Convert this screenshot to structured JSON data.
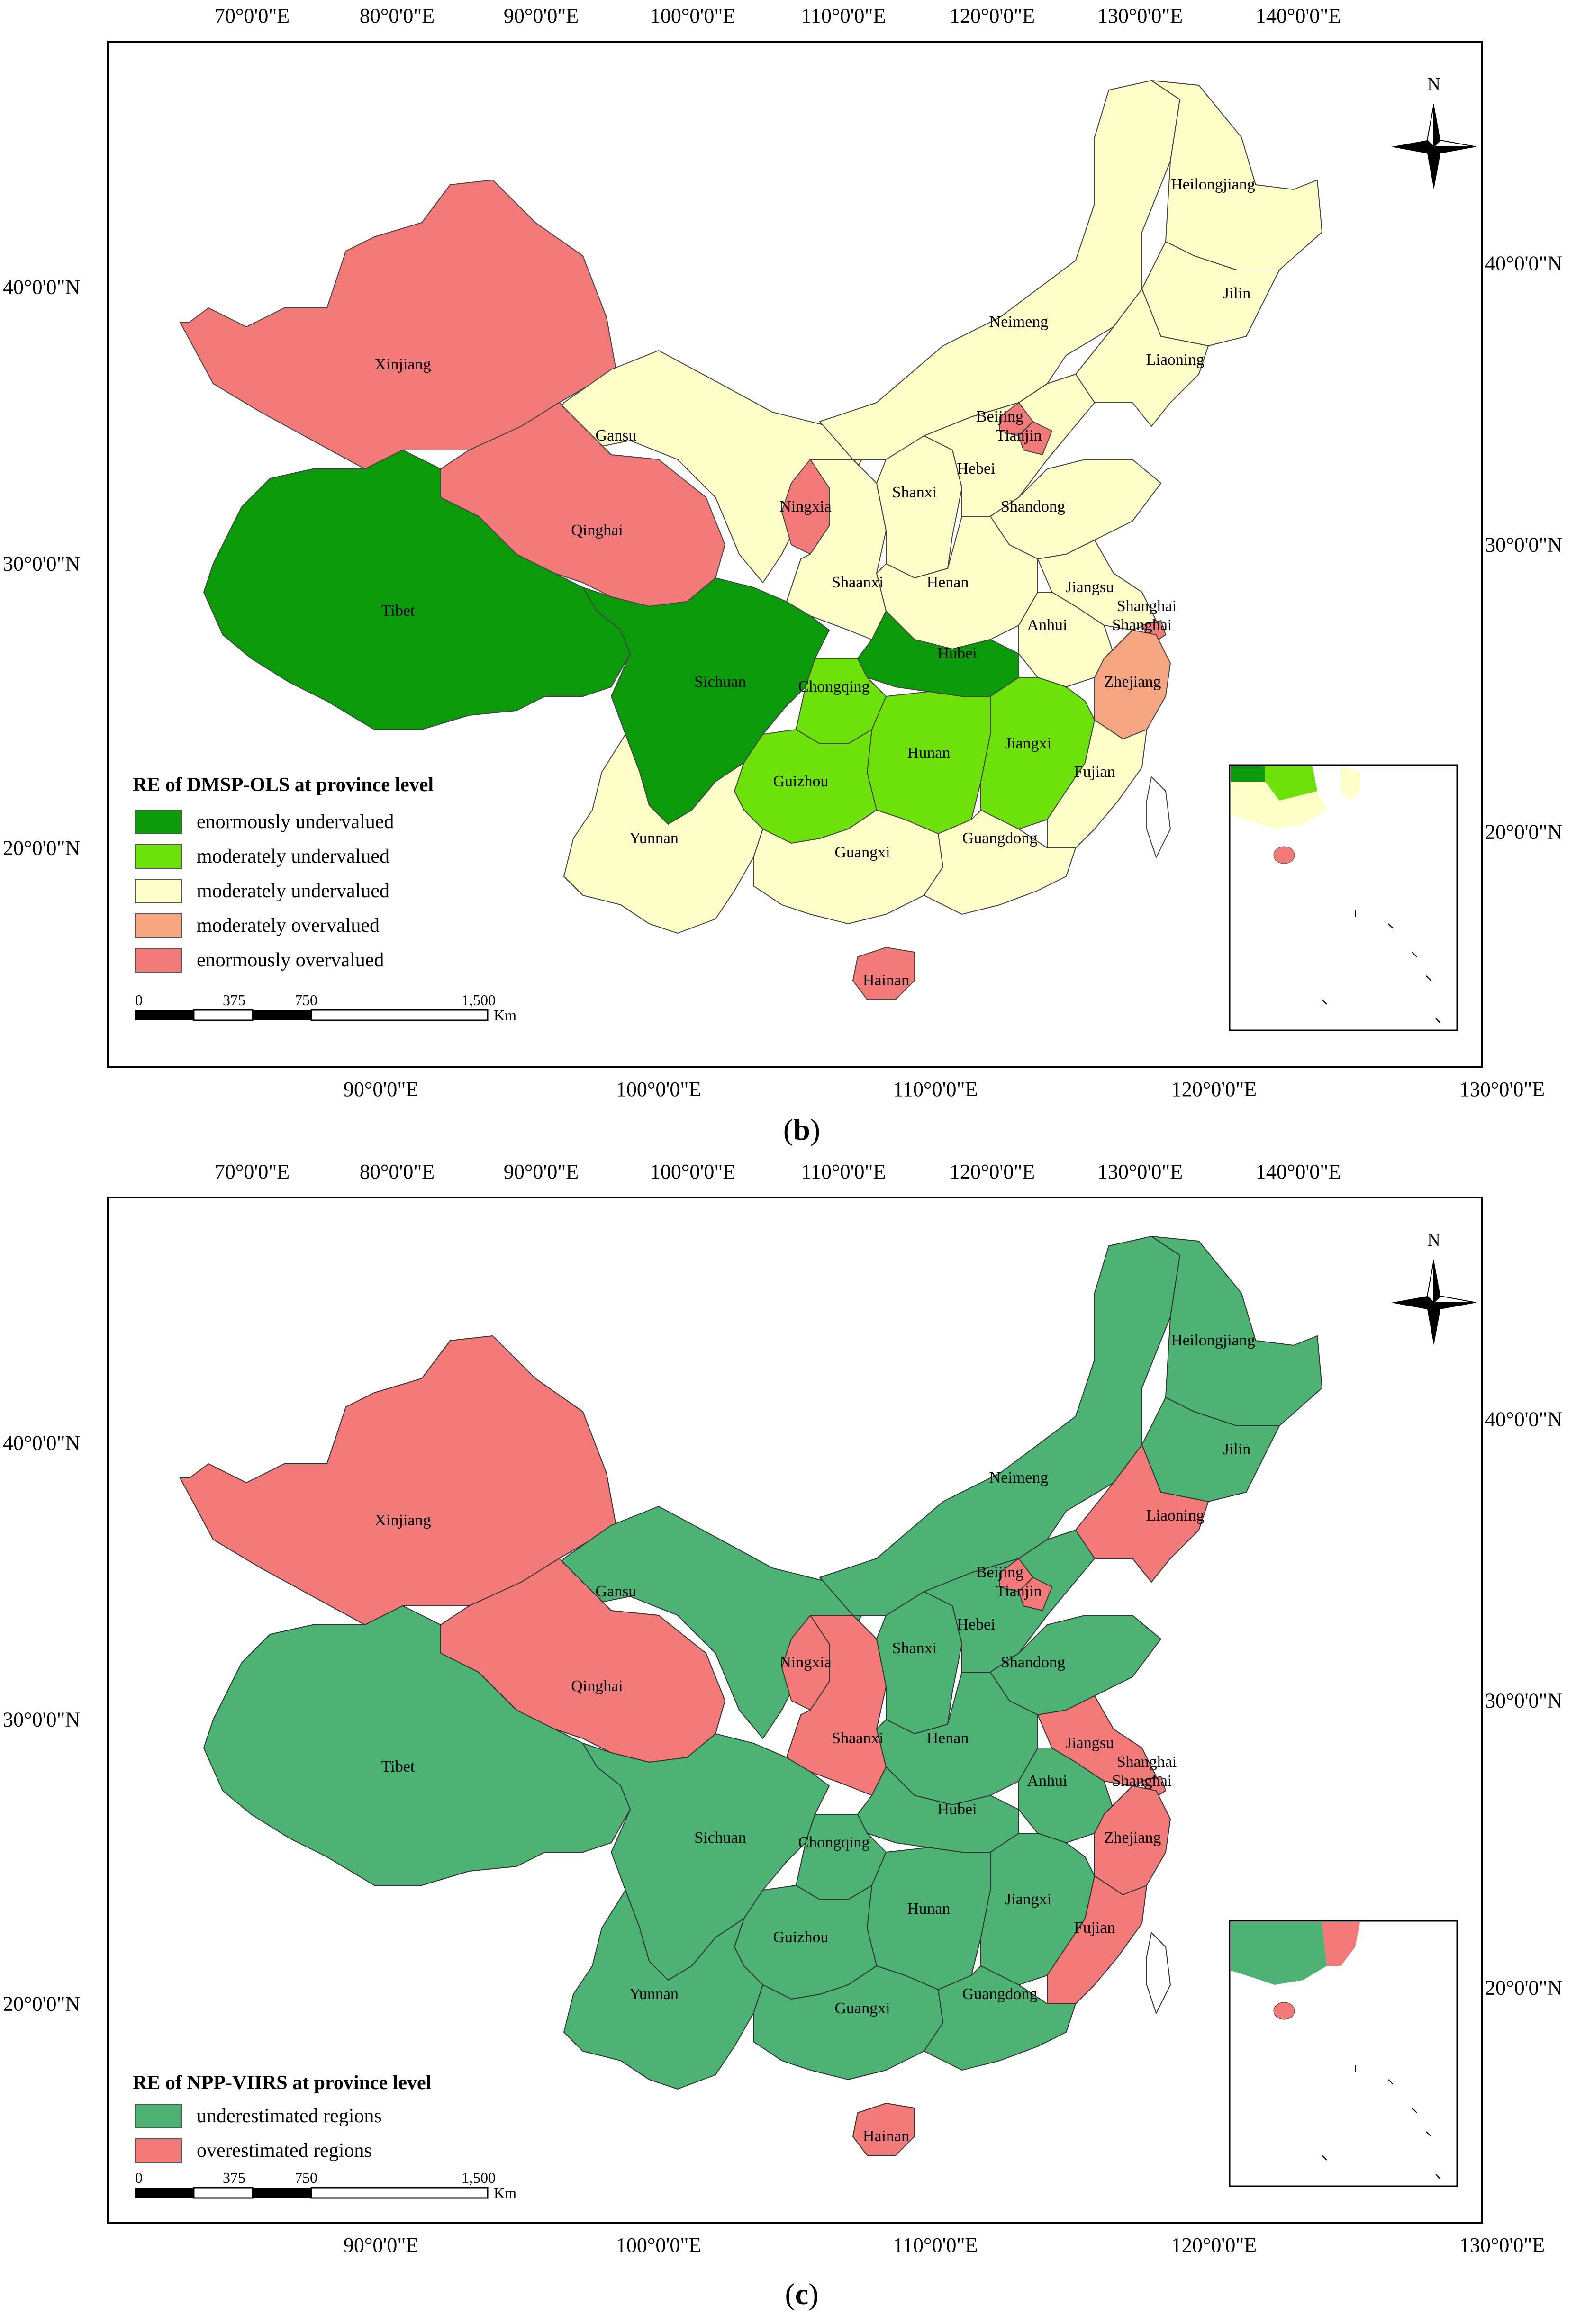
{
  "axes": {
    "top_lon_labels": [
      "70°0'0\"E",
      "80°0'0\"E",
      "90°0'0\"E",
      "100°0'0\"E",
      "110°0'0\"E",
      "120°0'0\"E",
      "130°0'0\"E",
      "140°0'0\"E"
    ],
    "bottom_lon_labels": [
      "90°0'0\"E",
      "100°0'0\"E",
      "110°0'0\"E",
      "120°0'0\"E",
      "130°0'0\"E"
    ],
    "left_lat_labels": [
      "40°0'0\"N",
      "30°0'0\"N",
      "20°0'0\"N"
    ],
    "right_lat_labels": [
      "40°0'0\"N",
      "30°0'0\"N",
      "20°0'0\"N"
    ]
  },
  "north_arrow": {
    "label": "N"
  },
  "scale_bar": {
    "ticks": [
      "0",
      "375",
      "750",
      "1,500"
    ],
    "unit": "Km"
  },
  "colors": {
    "enormously_undervalued": "#0a9a0a",
    "moderately_undervalued_green": "#6de20a",
    "moderately_undervalued_yellow": "#fefec8",
    "moderately_overvalued": "#f6a583",
    "enormously_overvalued": "#f27a78",
    "underestimated": "#4cb374",
    "overestimated": "#f27a78"
  },
  "panel_b": {
    "label": "b",
    "legend_title": "RE of DMSP-OLS at province level",
    "legend_items": [
      {
        "label": "enormously undervalued",
        "color_key": "enormously_undervalued"
      },
      {
        "label": "moderately undervalued",
        "color_key": "moderately_undervalued_green"
      },
      {
        "label": "moderately undervalued",
        "color_key": "moderately_undervalued_yellow"
      },
      {
        "label": "moderately overvalued",
        "color_key": "moderately_overvalued"
      },
      {
        "label": "enormously overvalued",
        "color_key": "enormously_overvalued"
      }
    ],
    "provinces": [
      "Heilongjiang",
      "Jilin",
      "Liaoning",
      "Neimeng",
      "Beijing",
      "Tianjin",
      "Hebei",
      "Shanxi",
      "Shandong",
      "Xinjiang",
      "Gansu",
      "Ningxia",
      "Qinghai",
      "Tibet",
      "Shaanxi",
      "Henan",
      "Jiangsu",
      "Shanghai",
      "Anhui",
      "Hubei",
      "Sichuan",
      "Chongqing",
      "Zhejiang",
      "Hunan",
      "Jiangxi",
      "Guizhou",
      "Fujian",
      "Yunnan",
      "Guangxi",
      "Guangdong",
      "Hainan"
    ]
  },
  "panel_c": {
    "label": "c",
    "legend_title": "RE of NPP-VIIRS at province level",
    "legend_items": [
      {
        "label": "underestimated regions",
        "color_key": "underestimated"
      },
      {
        "label": "overestimated regions",
        "color_key": "overestimated"
      }
    ],
    "provinces": [
      "Heilongjiang",
      "Jilin",
      "Liaoning",
      "Neimeng",
      "Beijing",
      "Tianjin",
      "Hebei",
      "Shanxi",
      "Shandong",
      "Xinjiang",
      "Gansu",
      "Ningxia",
      "Qinghai",
      "Tibet",
      "Shaanxi",
      "Henan",
      "Jiangsu",
      "Shanghai",
      "Anhui",
      "Hubei",
      "Sichuan",
      "Chongqing",
      "Zhejiang",
      "Hunan",
      "Jiangxi",
      "Guizhou",
      "Fujian",
      "Yunnan",
      "Guangxi",
      "Guangdong",
      "Hainan"
    ]
  }
}
